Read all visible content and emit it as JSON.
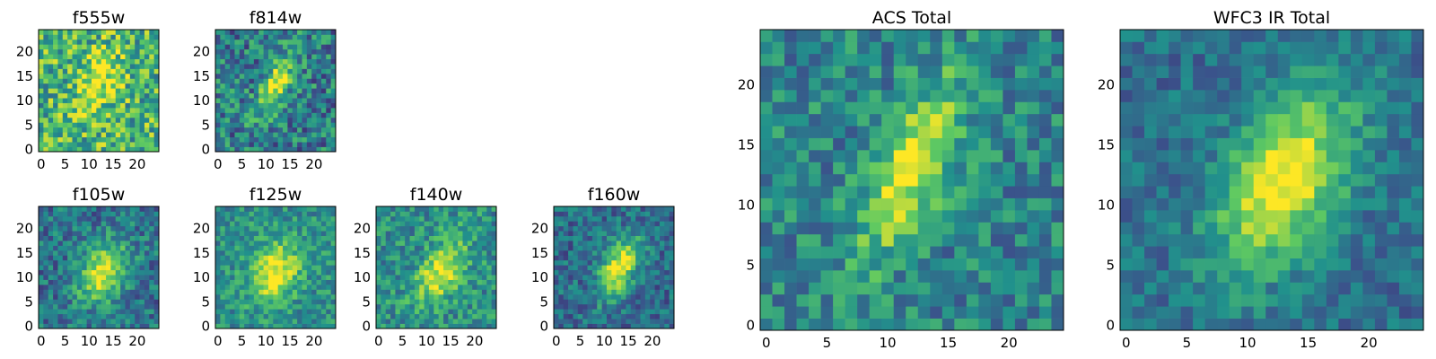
{
  "chart_data": {
    "type": "heatmap",
    "colormap": "viridis",
    "colormap_colors": [
      "#440154",
      "#3b528b",
      "#21918c",
      "#5ec962",
      "#fde725"
    ],
    "grid_size": [
      25,
      25
    ],
    "panels": [
      {
        "id": "f555w",
        "title": "f555w",
        "xticks": [
          0,
          5,
          10,
          15,
          20
        ],
        "yticks": [
          0,
          5,
          10,
          15,
          20
        ],
        "xlim": [
          -0.5,
          24.5
        ],
        "ylim": [
          -0.5,
          24.5
        ],
        "peak": [
          12,
          14
        ],
        "sigma": [
          2.6,
          4.5
        ],
        "rotation_deg": 25,
        "background_level": 0.66,
        "noise_level": 0.3
      },
      {
        "id": "f814w",
        "title": "f814w",
        "xticks": [
          0,
          5,
          10,
          15,
          20
        ],
        "yticks": [
          0,
          5,
          10,
          15,
          20
        ],
        "xlim": [
          -0.5,
          24.5
        ],
        "ylim": [
          -0.5,
          24.5
        ],
        "peak": [
          12,
          13
        ],
        "sigma": [
          1.7,
          4.8
        ],
        "rotation_deg": 28,
        "background_level": 0.42,
        "noise_level": 0.26
      },
      {
        "id": "f105w",
        "title": "f105w",
        "xticks": [
          0,
          5,
          10,
          15,
          20
        ],
        "yticks": [
          0,
          5,
          10,
          15,
          20
        ],
        "xlim": [
          -0.5,
          24.5
        ],
        "ylim": [
          -0.5,
          24.5
        ],
        "peak": [
          13,
          11
        ],
        "sigma": [
          3.0,
          4.5
        ],
        "rotation_deg": 30,
        "background_level": 0.38,
        "noise_level": 0.2
      },
      {
        "id": "f125w",
        "title": "f125w",
        "xticks": [
          0,
          5,
          10,
          15,
          20
        ],
        "yticks": [
          0,
          5,
          10,
          15,
          20
        ],
        "xlim": [
          -0.5,
          24.5
        ],
        "ylim": [
          -0.5,
          24.5
        ],
        "peak": [
          12,
          11
        ],
        "sigma": [
          3.2,
          4.6
        ],
        "rotation_deg": 25,
        "background_level": 0.5,
        "noise_level": 0.18
      },
      {
        "id": "f140w",
        "title": "f140w",
        "xticks": [
          0,
          5,
          10,
          15,
          20
        ],
        "yticks": [
          0,
          5,
          10,
          15,
          20
        ],
        "xlim": [
          -0.5,
          24.5
        ],
        "ylim": [
          -0.5,
          24.5
        ],
        "peak": [
          13,
          11
        ],
        "sigma": [
          2.6,
          5.0
        ],
        "rotation_deg": 30,
        "background_level": 0.5,
        "noise_level": 0.2
      },
      {
        "id": "f160w",
        "title": "f160w",
        "xticks": [
          0,
          5,
          10,
          15,
          20
        ],
        "yticks": [
          0,
          5,
          10,
          15,
          20
        ],
        "xlim": [
          -0.5,
          24.5
        ],
        "ylim": [
          -0.5,
          24.5
        ],
        "peak": [
          13,
          12
        ],
        "sigma": [
          2.3,
          4.6
        ],
        "rotation_deg": 28,
        "background_level": 0.36,
        "noise_level": 0.18
      },
      {
        "id": "acs-total",
        "title": "ACS Total",
        "xticks": [
          0,
          5,
          10,
          15,
          20
        ],
        "yticks": [
          0,
          5,
          10,
          15,
          20
        ],
        "xlim": [
          -0.5,
          24.5
        ],
        "ylim": [
          -0.5,
          24.5
        ],
        "peak": [
          12,
          13
        ],
        "sigma": [
          1.9,
          5.6
        ],
        "rotation_deg": 25,
        "background_level": 0.45,
        "noise_level": 0.2
      },
      {
        "id": "wfc3-ir-total",
        "title": "WFC3 IR Total",
        "xticks": [
          0,
          5,
          10,
          15,
          20
        ],
        "yticks": [
          0,
          5,
          10,
          15,
          20
        ],
        "xlim": [
          -0.5,
          24.5
        ],
        "ylim": [
          -0.5,
          24.5
        ],
        "peak": [
          13,
          12
        ],
        "sigma": [
          3.2,
          5.8
        ],
        "rotation_deg": 28,
        "background_level": 0.36,
        "noise_level": 0.14
      }
    ]
  }
}
